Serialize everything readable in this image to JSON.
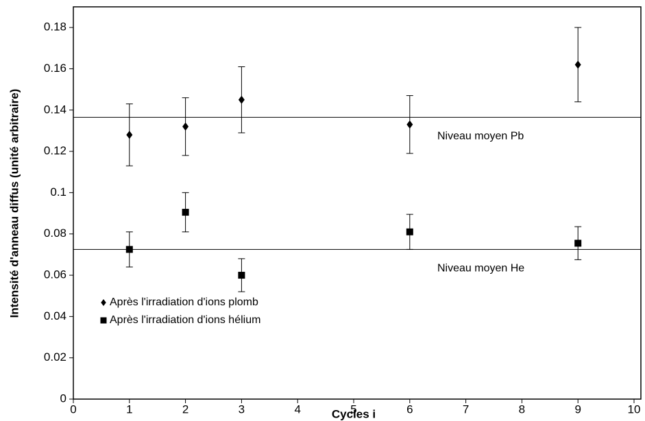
{
  "chart_data": {
    "type": "scatter",
    "xlabel": "Cycles i",
    "ylabel": "Intensité d'anneau diffus (unité arbitraire)",
    "xlim": [
      0,
      10
    ],
    "xticks": [
      0,
      1,
      2,
      3,
      4,
      5,
      6,
      7,
      8,
      9,
      10
    ],
    "ylim": [
      0,
      0.19
    ],
    "yticks": [
      0,
      0.02,
      0.04,
      0.06,
      0.08,
      0.1,
      0.12,
      0.14,
      0.16,
      0.18
    ],
    "legend": "lower left",
    "series": [
      {
        "name": "Après l'irradiation d'ions plomb",
        "color": "#000000",
        "marker": "diamond",
        "x": [
          1,
          2,
          3,
          6,
          9
        ],
        "values": [
          0.128,
          0.132,
          0.145,
          0.133,
          0.162
        ],
        "errors": [
          0.015,
          0.014,
          0.016,
          0.014,
          0.018
        ]
      },
      {
        "name": "Après l'irradiation d'ions hélium",
        "color": "#000000",
        "marker": "square",
        "x": [
          1,
          2,
          3,
          6,
          9
        ],
        "values": [
          0.0725,
          0.0905,
          0.06,
          0.081,
          0.0755
        ],
        "errors": [
          0.0085,
          0.0095,
          0.008,
          0.0085,
          0.008
        ]
      }
    ],
    "reference_lines": [
      {
        "value": 0.1365,
        "label": "Niveau moyen Pb"
      },
      {
        "value": 0.0725,
        "label": "Niveau moyen He"
      }
    ]
  }
}
